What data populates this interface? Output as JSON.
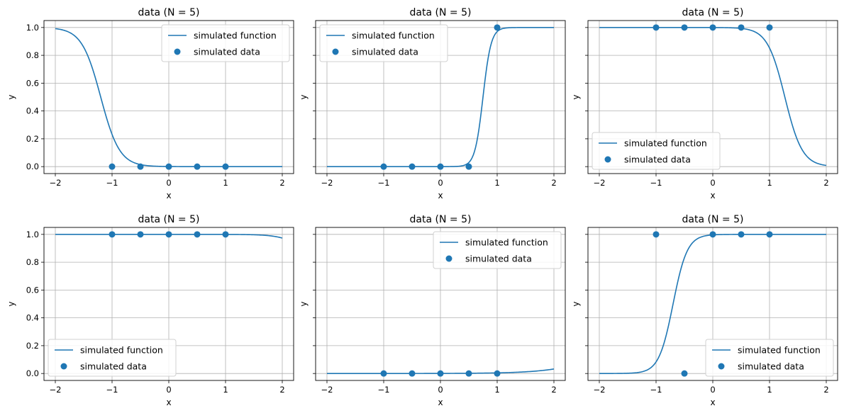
{
  "chart_data": [
    {
      "type": "line",
      "title": "data (N = 5)",
      "xlabel": "x",
      "ylabel": "y",
      "xlim": [
        -2.2,
        2.2
      ],
      "ylim": [
        -0.05,
        1.05
      ],
      "xticks": [
        -2,
        -1,
        0,
        1,
        2
      ],
      "xtick_labels": [
        "−2",
        "−1",
        "0",
        "1",
        "2"
      ],
      "yticks": [
        0,
        0.2,
        0.4,
        0.6,
        0.8,
        1.0
      ],
      "ytick_labels": [
        "0.0",
        "0.2",
        "0.4",
        "0.6",
        "0.8",
        "1.0"
      ],
      "show_yticklabels": true,
      "grid": true,
      "legend": "upper-right",
      "color": "#1f77b4",
      "series": [
        {
          "name": "simulated function",
          "kind": "line",
          "curve": {
            "center": -1.2,
            "slope": -6.0
          }
        },
        {
          "name": "simulated data",
          "kind": "scatter",
          "x": [
            -1,
            -0.5,
            0,
            0.5,
            1
          ],
          "y": [
            0,
            0,
            0,
            0,
            0
          ]
        }
      ]
    },
    {
      "type": "line",
      "title": "data (N = 5)",
      "xlabel": "x",
      "ylabel": "y",
      "xlim": [
        -2.2,
        2.2
      ],
      "ylim": [
        -0.05,
        1.05
      ],
      "xticks": [
        -2,
        -1,
        0,
        1,
        2
      ],
      "xtick_labels": [
        "−2",
        "−1",
        "0",
        "1",
        "2"
      ],
      "yticks": [
        0,
        0.2,
        0.4,
        0.6,
        0.8,
        1.0
      ],
      "ytick_labels": [
        "0.0",
        "0.2",
        "0.4",
        "0.6",
        "0.8",
        "1.0"
      ],
      "show_yticklabels": false,
      "grid": true,
      "legend": "upper-left",
      "color": "#1f77b4",
      "series": [
        {
          "name": "simulated function",
          "kind": "line",
          "curve": {
            "center": 0.75,
            "slope": 14.0
          }
        },
        {
          "name": "simulated data",
          "kind": "scatter",
          "x": [
            -1,
            -0.5,
            0,
            0.5,
            1
          ],
          "y": [
            0,
            0,
            0,
            0,
            1
          ]
        }
      ]
    },
    {
      "type": "line",
      "title": "data (N = 5)",
      "xlabel": "x",
      "ylabel": "y",
      "xlim": [
        -2.2,
        2.2
      ],
      "ylim": [
        -0.05,
        1.05
      ],
      "xticks": [
        -2,
        -1,
        0,
        1,
        2
      ],
      "xtick_labels": [
        "−2",
        "−1",
        "0",
        "1",
        "2"
      ],
      "yticks": [
        0,
        0.2,
        0.4,
        0.6,
        0.8,
        1.0
      ],
      "ytick_labels": [
        "0.0",
        "0.2",
        "0.4",
        "0.6",
        "0.8",
        "1.0"
      ],
      "show_yticklabels": false,
      "grid": true,
      "legend": "lower-left",
      "color": "#1f77b4",
      "series": [
        {
          "name": "simulated function",
          "kind": "line",
          "curve": {
            "center": 1.27,
            "slope": -6.5
          }
        },
        {
          "name": "simulated data",
          "kind": "scatter",
          "x": [
            -1,
            -0.5,
            0,
            0.5,
            1
          ],
          "y": [
            1,
            1,
            1,
            1,
            1
          ]
        }
      ]
    },
    {
      "type": "line",
      "title": "data (N = 5)",
      "xlabel": "x",
      "ylabel": "y",
      "xlim": [
        -2.2,
        2.2
      ],
      "ylim": [
        -0.05,
        1.05
      ],
      "xticks": [
        -2,
        -1,
        0,
        1,
        2
      ],
      "xtick_labels": [
        "−2",
        "−1",
        "0",
        "1",
        "2"
      ],
      "yticks": [
        0,
        0.2,
        0.4,
        0.6,
        0.8,
        1.0
      ],
      "ytick_labels": [
        "0.0",
        "0.2",
        "0.4",
        "0.6",
        "0.8",
        "1.0"
      ],
      "show_yticklabels": true,
      "grid": true,
      "legend": "lower-left",
      "color": "#1f77b4",
      "series": [
        {
          "name": "simulated function",
          "kind": "line",
          "curve": {
            "center": 2.8,
            "slope": -4.5
          }
        },
        {
          "name": "simulated data",
          "kind": "scatter",
          "x": [
            -1,
            -0.5,
            0,
            0.5,
            1
          ],
          "y": [
            1,
            1,
            1,
            1,
            1
          ]
        }
      ]
    },
    {
      "type": "line",
      "title": "data (N = 5)",
      "xlabel": "x",
      "ylabel": "y",
      "xlim": [
        -2.2,
        2.2
      ],
      "ylim": [
        -0.05,
        1.05
      ],
      "xticks": [
        -2,
        -1,
        0,
        1,
        2
      ],
      "xtick_labels": [
        "−2",
        "−1",
        "0",
        "1",
        "2"
      ],
      "yticks": [
        0,
        0.2,
        0.4,
        0.6,
        0.8,
        1.0
      ],
      "ytick_labels": [
        "0.0",
        "0.2",
        "0.4",
        "0.6",
        "0.8",
        "1.0"
      ],
      "show_yticklabels": false,
      "grid": true,
      "legend": "upper-right",
      "color": "#1f77b4",
      "series": [
        {
          "name": "simulated function",
          "kind": "line",
          "curve": {
            "center": 3.7,
            "slope": 2.0
          }
        },
        {
          "name": "simulated data",
          "kind": "scatter",
          "x": [
            -1,
            -0.5,
            0,
            0.5,
            1
          ],
          "y": [
            0,
            0,
            0,
            0,
            0
          ]
        }
      ]
    },
    {
      "type": "line",
      "title": "data (N = 5)",
      "xlabel": "x",
      "ylabel": "y",
      "xlim": [
        -2.2,
        2.2
      ],
      "ylim": [
        -0.05,
        1.05
      ],
      "xticks": [
        -2,
        -1,
        0,
        1,
        2
      ],
      "xtick_labels": [
        "−2",
        "−1",
        "0",
        "1",
        "2"
      ],
      "yticks": [
        0,
        0.2,
        0.4,
        0.6,
        0.8,
        1.0
      ],
      "ytick_labels": [
        "0.0",
        "0.2",
        "0.4",
        "0.6",
        "0.8",
        "1.0"
      ],
      "show_yticklabels": false,
      "grid": true,
      "legend": "lower-right",
      "color": "#1f77b4",
      "series": [
        {
          "name": "simulated function",
          "kind": "line",
          "curve": {
            "center": -0.7,
            "slope": 8.0
          }
        },
        {
          "name": "simulated data",
          "kind": "scatter",
          "x": [
            -1,
            -0.5,
            0,
            0.5,
            1
          ],
          "y": [
            1,
            0,
            1,
            1,
            1
          ]
        }
      ]
    }
  ]
}
